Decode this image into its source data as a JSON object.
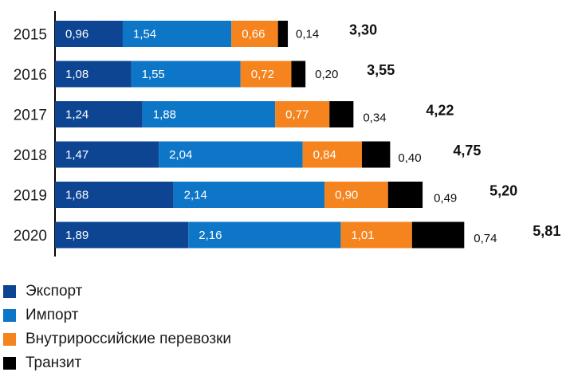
{
  "chart_data": {
    "type": "bar",
    "orientation": "horizontal",
    "stacked": true,
    "categories": [
      "2015",
      "2016",
      "2017",
      "2018",
      "2019",
      "2020"
    ],
    "series": [
      {
        "name": "Экспорт",
        "color": "#0d4593",
        "values": [
          0.96,
          1.08,
          1.24,
          1.47,
          1.68,
          1.89
        ],
        "labels": [
          "0,96",
          "1,08",
          "1,24",
          "1,47",
          "1,68",
          "1,89"
        ]
      },
      {
        "name": "Импорт",
        "color": "#0e76c6",
        "values": [
          1.54,
          1.55,
          1.88,
          2.04,
          2.14,
          2.16
        ],
        "labels": [
          "1,54",
          "1,55",
          "1,88",
          "2,04",
          "2,14",
          "2,16"
        ]
      },
      {
        "name": "Внутрироссийские перевозки",
        "color": "#f5841f",
        "values": [
          0.66,
          0.72,
          0.77,
          0.84,
          0.9,
          1.01
        ],
        "labels": [
          "0,66",
          "0,72",
          "0,77",
          "0,84",
          "0,90",
          "1,01"
        ]
      },
      {
        "name": "Транзит",
        "color": "#000000",
        "values": [
          0.14,
          0.2,
          0.34,
          0.4,
          0.49,
          0.74
        ],
        "labels": [
          "0,14",
          "0,20",
          "0,34",
          "0,40",
          "0,49",
          "0,74"
        ]
      }
    ],
    "totals": [
      3.3,
      3.55,
      4.22,
      4.75,
      5.2,
      5.81
    ],
    "total_labels": [
      "3,30",
      "3,55",
      "4,22",
      "4,75",
      "5,20",
      "5,81"
    ],
    "legend_position": "bottom-left"
  }
}
